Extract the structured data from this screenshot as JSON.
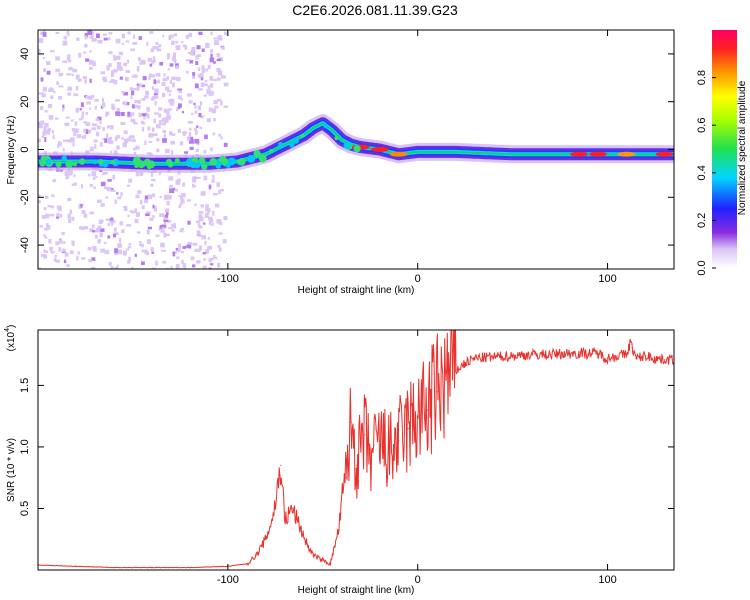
{
  "title": "C2E6.2026.081.11.39.G23",
  "chart_data": [
    {
      "type": "heatmap",
      "title": "C2E6.2026.081.11.39.G23",
      "xlabel": "Height of straight line (km)",
      "ylabel": "Frequency (Hz)",
      "xlim": [
        -200,
        135
      ],
      "ylim": [
        -50,
        50
      ],
      "x_ticks": [
        -100,
        0,
        100
      ],
      "x_tick_labels": [
        "-100",
        "0",
        "100"
      ],
      "y_ticks": [
        -40,
        -20,
        0,
        20,
        40
      ],
      "y_tick_labels": [
        "-40",
        "-20",
        "0",
        "20",
        "40"
      ],
      "ridge": {
        "x": [
          -200,
          -170,
          -140,
          -110,
          -95,
          -80,
          -70,
          -60,
          -55,
          -50,
          -45,
          -40,
          -35,
          -30,
          -20,
          -10,
          0,
          20,
          50,
          85,
          110,
          135
        ],
        "y": [
          -5,
          -5,
          -6,
          -6,
          -5,
          -2,
          2,
          6,
          9,
          11,
          8,
          4,
          2,
          1,
          0,
          -2,
          -1,
          -1,
          -2,
          -2,
          -2,
          -2
        ]
      },
      "colorbar": {
        "label": "Normalized spectral amplitude",
        "range": [
          0,
          1
        ],
        "ticks": [
          0.0,
          0.2,
          0.4,
          0.6,
          0.8
        ],
        "tick_labels": [
          "0.0",
          "0.2",
          "0.4",
          "0.6",
          "0.8"
        ]
      }
    },
    {
      "type": "line",
      "xlabel": "Height of straight line (km)",
      "ylabel": "SNR (10 * v/v)",
      "scale_label": "(x10",
      "scale_exponent": "4",
      "xlim": [
        -200,
        135
      ],
      "ylim": [
        0,
        1.95
      ],
      "x_ticks": [
        -100,
        0,
        100
      ],
      "x_tick_labels": [
        "-100",
        "0",
        "100"
      ],
      "y_ticks": [
        0.5,
        1.0,
        1.5
      ],
      "y_tick_labels": [
        "0.5",
        "1.0",
        "1.5"
      ],
      "series": [
        {
          "name": "SNR",
          "color": "#e8302c",
          "x": [
            -200,
            -180,
            -160,
            -140,
            -120,
            -100,
            -90,
            -85,
            -80,
            -76,
            -72,
            -70,
            -66,
            -62,
            -58,
            -55,
            -50,
            -46,
            -42,
            -38,
            -35,
            -32,
            -28,
            -25,
            -20,
            -15,
            -10,
            -5,
            0,
            5,
            10,
            15,
            20,
            25,
            30,
            40,
            50,
            60,
            70,
            80,
            90,
            95,
            100,
            105,
            110,
            112,
            115,
            120,
            125,
            130,
            135
          ],
          "y": [
            0.04,
            0.03,
            0.02,
            0.02,
            0.02,
            0.03,
            0.05,
            0.12,
            0.25,
            0.45,
            0.85,
            0.4,
            0.5,
            0.35,
            0.2,
            0.12,
            0.08,
            0.05,
            0.3,
            0.75,
            1.2,
            0.85,
            1.1,
            0.9,
            1.05,
            0.95,
            1.05,
            1.15,
            1.25,
            1.3,
            1.45,
            1.55,
            1.62,
            1.68,
            1.72,
            1.73,
            1.74,
            1.75,
            1.75,
            1.76,
            1.76,
            1.76,
            1.72,
            1.74,
            1.75,
            1.85,
            1.72,
            1.74,
            1.72,
            1.71,
            1.71
          ]
        }
      ]
    }
  ]
}
